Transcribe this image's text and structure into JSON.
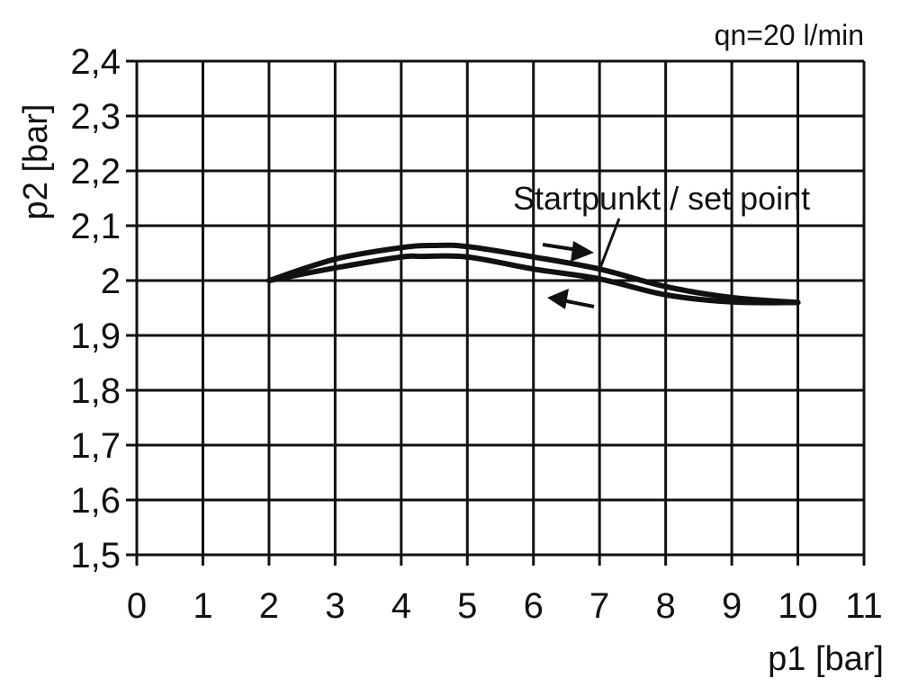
{
  "chart_data": {
    "type": "line",
    "title": "",
    "annotation_top_right": "qn=20 l/min",
    "xlabel": "p1 [bar]",
    "ylabel": "p2 [bar]",
    "xlim": [
      0,
      11
    ],
    "ylim": [
      1.5,
      2.4
    ],
    "x_ticks": [
      "0",
      "1",
      "2",
      "3",
      "4",
      "5",
      "6",
      "7",
      "8",
      "9",
      "10",
      "11"
    ],
    "y_ticks": [
      "1,5",
      "1,6",
      "1,7",
      "1,8",
      "1,9",
      "2",
      "2,1",
      "2,2",
      "2,3",
      "2,4"
    ],
    "grid": true,
    "callout": "Startpunkt / set point",
    "callout_target": [
      7,
      2.02
    ],
    "series": [
      {
        "direction": "increasing p1",
        "x": [
          2,
          3,
          4,
          4.5,
          5,
          6,
          7,
          8,
          9,
          10
        ],
        "y": [
          2.0,
          2.039,
          2.06,
          2.064,
          2.062,
          2.043,
          2.021,
          1.989,
          1.969,
          1.96
        ]
      },
      {
        "direction": "decreasing p1",
        "x": [
          2,
          3,
          4,
          4.3,
          5,
          6,
          7,
          8,
          9,
          10
        ],
        "y": [
          2.0,
          2.023,
          2.043,
          2.044,
          2.043,
          2.021,
          2.003,
          1.974,
          1.961,
          1.96
        ]
      }
    ],
    "line_color": "#111111"
  }
}
